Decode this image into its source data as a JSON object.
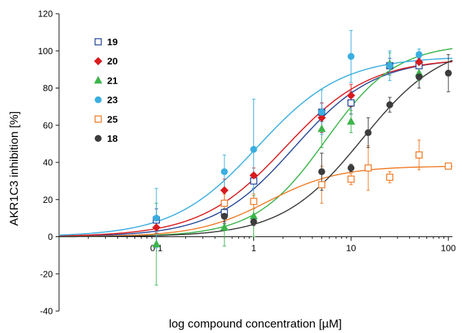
{
  "chart_data": {
    "type": "scatter",
    "xlabel": "log compound concentration [µM]",
    "ylabel": "AKR1C3 inhibition [%]",
    "x_scale": "log",
    "xlim": [
      0.01,
      110
    ],
    "ylim": [
      -40,
      120
    ],
    "x_ticks": [
      0.1,
      1,
      10,
      100
    ],
    "x_tick_labels": [
      "0.1",
      "1",
      "10",
      "100"
    ],
    "y_ticks": [
      -40,
      -20,
      0,
      20,
      40,
      60,
      80,
      100,
      120
    ],
    "grid": false,
    "legend_position": "top-left",
    "series": [
      {
        "name": "19",
        "color": "#2b4a9a",
        "marker": "open-square",
        "x": [
          0.1,
          0.5,
          1,
          5,
          10,
          25,
          50
        ],
        "y": [
          9,
          13,
          30,
          67,
          72,
          92,
          92
        ],
        "err": [
          6,
          5,
          4,
          5,
          6,
          4,
          4
        ],
        "fit": {
          "top": 96,
          "ic50": 2.6,
          "hill": 1.05
        }
      },
      {
        "name": "20",
        "color": "#d91a1f",
        "marker": "diamond",
        "x": [
          0.1,
          0.5,
          1,
          5,
          10,
          50
        ],
        "y": [
          5,
          25,
          33,
          64,
          76,
          94
        ],
        "err": [
          3,
          6,
          4,
          8,
          6,
          3
        ],
        "fit": {
          "top": 96,
          "ic50": 2.1,
          "hill": 1.0
        }
      },
      {
        "name": "21",
        "color": "#3cb54a",
        "marker": "triangle",
        "x": [
          0.1,
          0.5,
          1,
          5,
          10,
          25,
          50
        ],
        "y": [
          -4,
          5,
          11,
          58,
          62,
          93,
          88
        ],
        "err": [
          22,
          10,
          11,
          10,
          6,
          6,
          4
        ],
        "fit": {
          "top": 104,
          "ic50": 5.5,
          "hill": 1.2
        }
      },
      {
        "name": "23",
        "color": "#3aaee0",
        "marker": "circle",
        "x": [
          0.1,
          0.5,
          1,
          5,
          10,
          25,
          50
        ],
        "y": [
          10,
          35,
          47,
          67,
          97,
          92,
          98
        ],
        "err": [
          16,
          9,
          27,
          12,
          14,
          8,
          3
        ],
        "fit": {
          "top": 97,
          "ic50": 1.1,
          "hill": 1.0
        }
      },
      {
        "name": "25",
        "color": "#ef7d2a",
        "marker": "open-square",
        "x": [
          0.5,
          1,
          5,
          10,
          15,
          25,
          50,
          100
        ],
        "y": [
          18,
          19,
          28,
          31,
          37,
          32,
          44,
          38
        ],
        "err": [
          5,
          4,
          10,
          3,
          12,
          3,
          8,
          1
        ],
        "fit": {
          "top": 38,
          "ic50": 1.4,
          "hill": 1.2
        }
      },
      {
        "name": "18",
        "color": "#3c3c3c",
        "marker": "filled-circle",
        "x": [
          0.5,
          1,
          5,
          10,
          15,
          25,
          50,
          100
        ],
        "y": [
          11,
          8,
          35,
          37,
          56,
          71,
          86,
          88
        ],
        "err": [
          4,
          2,
          10,
          2,
          8,
          4,
          6,
          10
        ],
        "fit": {
          "top": 105,
          "ic50": 13,
          "hill": 1.05
        }
      }
    ]
  }
}
